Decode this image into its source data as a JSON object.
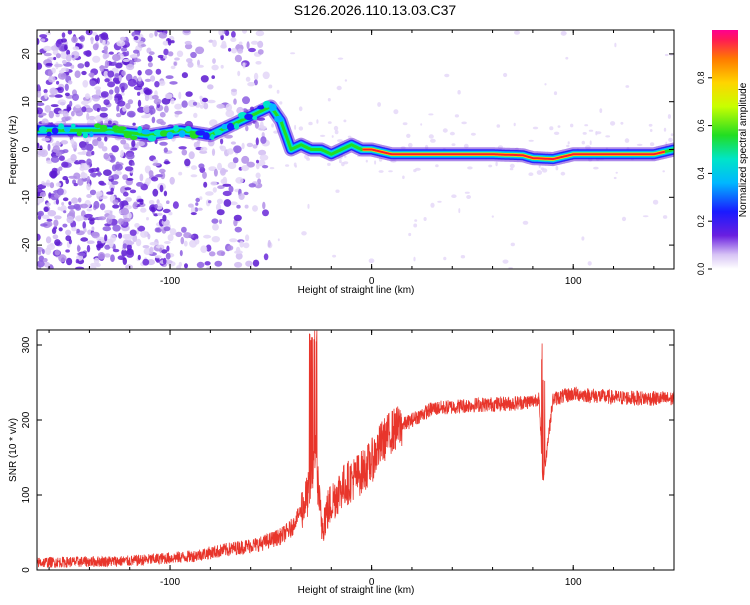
{
  "figure": {
    "title": "S126.2026.110.13.03.C37"
  },
  "chart_data": [
    {
      "type": "heatmap",
      "name": "spectrogram",
      "xlabel": "Height of straight line (km)",
      "ylabel": "Frequency (Hz)",
      "xlim": [
        -166,
        150
      ],
      "ylim": [
        -25,
        25
      ],
      "xticks": [
        -100,
        0,
        100
      ],
      "yticks": [
        -20,
        -10,
        0,
        10,
        20
      ],
      "xtick_labels": [
        "-100",
        "0",
        "100"
      ],
      "ytick_labels": [
        "-20",
        "-10",
        "0",
        "10",
        "20"
      ],
      "ridge": {
        "description_points_x": [
          -166,
          -130,
          -110,
          -95,
          -80,
          -65,
          -55,
          -50,
          -45,
          -40,
          -35,
          -30,
          -25,
          -20,
          -15,
          -10,
          -5,
          0,
          10,
          30,
          60,
          75,
          80,
          90,
          100,
          120,
          140,
          150
        ],
        "description_points_y": [
          4,
          4,
          3,
          4,
          3,
          6,
          8,
          9,
          6,
          0,
          1,
          0,
          0,
          -1,
          0,
          1,
          0,
          0,
          -1,
          -1,
          -1,
          -1.2,
          -1.8,
          -2,
          -1,
          -1,
          -1,
          0
        ]
      },
      "colorbar": {
        "label": "Normalized spectral amplitude",
        "range": [
          0,
          1
        ],
        "ticks": [
          0.0,
          0.2,
          0.4,
          0.6,
          0.8
        ],
        "tick_labels": [
          "0.0",
          "0.2",
          "0.4",
          "0.6",
          "0.8"
        ]
      }
    },
    {
      "type": "line",
      "name": "snr",
      "xlabel": "Height of straight line (km)",
      "ylabel": "SNR (10 * v/v)",
      "xlim": [
        -166,
        150
      ],
      "ylim": [
        0,
        320
      ],
      "xticks": [
        -100,
        0,
        100
      ],
      "yticks": [
        0,
        100,
        200,
        300
      ],
      "xtick_labels": [
        "-100",
        "0",
        "100"
      ],
      "ytick_labels": [
        "0",
        "100",
        "200",
        "300"
      ],
      "color": "#e8352b",
      "trend_x": [
        -166,
        -120,
        -90,
        -70,
        -55,
        -45,
        -40,
        -35,
        -30,
        -28,
        -25,
        -20,
        -15,
        -10,
        -5,
        0,
        5,
        10,
        20,
        30,
        50,
        70,
        80,
        83,
        85,
        90,
        100,
        120,
        150
      ],
      "trend_y": [
        10,
        12,
        18,
        28,
        35,
        45,
        55,
        80,
        110,
        160,
        60,
        90,
        110,
        120,
        130,
        145,
        170,
        185,
        200,
        215,
        220,
        222,
        225,
        230,
        120,
        228,
        235,
        230,
        228
      ]
    }
  ]
}
